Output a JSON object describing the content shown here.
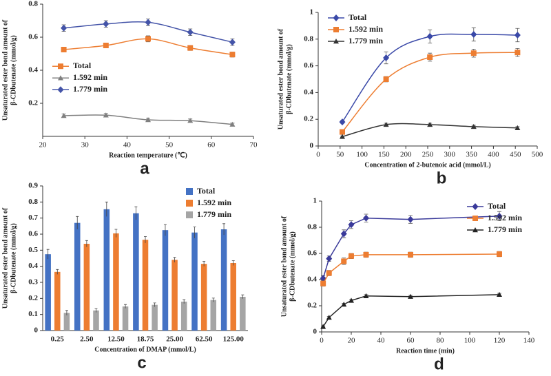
{
  "chart_data": [
    {
      "type": "line",
      "panel": "a",
      "smooth": true,
      "xlabel": "Reaction temperature (℃)",
      "ylabel": [
        "Unsaturated ester bond amount of",
        "β-CDbutenate (mmol/g)"
      ],
      "x": [
        25,
        35,
        45,
        55,
        65
      ],
      "xlim": [
        20,
        70
      ],
      "xticks": [
        20,
        30,
        40,
        50,
        60,
        70
      ],
      "ylim": [
        0,
        0.8
      ],
      "yticks": [
        0.2,
        0.4,
        0.6,
        0.8
      ],
      "legend": "middle-left",
      "series": [
        {
          "name": "Total",
          "color": "#ed7d31",
          "marker": "square",
          "values": [
            0.525,
            0.55,
            0.59,
            0.535,
            0.495
          ],
          "errors": [
            0.015,
            0.015,
            0.018,
            0.015,
            0.015
          ]
        },
        {
          "name": "1.592 min",
          "color": "#7f7f7f",
          "marker": "triangle",
          "values": [
            0.125,
            0.128,
            0.1,
            0.095,
            0.072
          ],
          "errors": [
            0.01,
            0.01,
            0.01,
            0.01,
            0.008
          ]
        },
        {
          "name": "1.779 min",
          "color": "#4454a8",
          "marker": "diamond",
          "values": [
            0.655,
            0.68,
            0.69,
            0.63,
            0.57
          ],
          "errors": [
            0.02,
            0.02,
            0.02,
            0.02,
            0.02
          ]
        }
      ]
    },
    {
      "type": "line",
      "panel": "b",
      "smooth": true,
      "xlabel": "Concentration of 2-butenoic acid (mmol/L)",
      "ylabel": [
        "Unsaturated ester bond amount of",
        "β-CDbutenate (mmol/g)"
      ],
      "x": [
        55,
        155,
        255,
        355,
        455
      ],
      "xlim": [
        0,
        500
      ],
      "xticks": [
        0,
        50,
        100,
        150,
        200,
        250,
        300,
        350,
        400,
        450,
        500
      ],
      "ylim": [
        0,
        1
      ],
      "yticks": [
        0,
        0.2,
        0.4,
        0.6,
        0.8,
        1
      ],
      "legend": "top-left",
      "series": [
        {
          "name": "Total",
          "color": "#3a49a8",
          "marker": "diamond",
          "values": [
            0.18,
            0.66,
            0.82,
            0.835,
            0.83
          ],
          "errors": [
            0.01,
            0.045,
            0.05,
            0.05,
            0.05
          ]
        },
        {
          "name": "1.592 min",
          "color": "#ed7d31",
          "marker": "square",
          "values": [
            0.105,
            0.5,
            0.665,
            0.695,
            0.7
          ],
          "errors": [
            0.01,
            0.02,
            0.03,
            0.03,
            0.03
          ]
        },
        {
          "name": "1.779 min",
          "color": "#333333",
          "marker": "triangle",
          "values": [
            0.07,
            0.16,
            0.16,
            0.145,
            0.135
          ],
          "errors": [
            0.005,
            0.01,
            0.01,
            0.01,
            0.01
          ]
        }
      ]
    },
    {
      "type": "bar",
      "panel": "c",
      "xlabel": "Concentration of DMAP (mmol/L)",
      "ylabel": [
        "Unsaturated ester bond amount of",
        "β-CDbutenate (mmol/g)"
      ],
      "categories": [
        "0.25",
        "2.50",
        "12.50",
        "18.75",
        "25.00",
        "62.50",
        "125.00"
      ],
      "ylim": [
        0,
        0.9
      ],
      "yticks": [
        0,
        0.1,
        0.2,
        0.3,
        0.4,
        0.5,
        0.6,
        0.7,
        0.8,
        0.9
      ],
      "legend": "top-right",
      "series": [
        {
          "name": "Total",
          "color": "#4472c4",
          "values": [
            0.475,
            0.67,
            0.755,
            0.73,
            0.625,
            0.61,
            0.63
          ],
          "errors": [
            0.03,
            0.04,
            0.045,
            0.04,
            0.035,
            0.035,
            0.035
          ]
        },
        {
          "name": "1.592 min",
          "color": "#ed7d31",
          "values": [
            0.365,
            0.54,
            0.605,
            0.565,
            0.44,
            0.415,
            0.42
          ],
          "errors": [
            0.015,
            0.02,
            0.025,
            0.02,
            0.015,
            0.015,
            0.015
          ]
        },
        {
          "name": "1.779 min",
          "color": "#a5a5a5",
          "values": [
            0.11,
            0.125,
            0.15,
            0.16,
            0.18,
            0.19,
            0.21
          ],
          "errors": [
            0.015,
            0.012,
            0.012,
            0.012,
            0.012,
            0.012,
            0.012
          ]
        }
      ]
    },
    {
      "type": "line",
      "panel": "d",
      "smooth": false,
      "xlabel": "Reaction time (min)",
      "ylabel": [
        "Unsaturated ester bond amount of",
        "β-CDbutenate (mmol/g)"
      ],
      "x": [
        1,
        5,
        15,
        20,
        30,
        60,
        120
      ],
      "xlim": [
        0,
        140
      ],
      "xticks": [
        0,
        20,
        40,
        60,
        80,
        100,
        120,
        140
      ],
      "ylim": [
        0,
        1
      ],
      "yticks": [
        0,
        0.2,
        0.4,
        0.6,
        0.8,
        1
      ],
      "legend": "top-right",
      "series": [
        {
          "name": "Total",
          "color": "#3a3a9a",
          "marker": "diamond",
          "values": [
            0.41,
            0.56,
            0.75,
            0.82,
            0.87,
            0.86,
            0.885
          ],
          "errors": [
            0.02,
            0.02,
            0.03,
            0.03,
            0.03,
            0.03,
            0.035
          ]
        },
        {
          "name": "1.592 min",
          "color": "#ed7d31",
          "marker": "square",
          "values": [
            0.37,
            0.45,
            0.54,
            0.58,
            0.59,
            0.59,
            0.595
          ],
          "errors": [
            0.02,
            0.02,
            0.025,
            0.02,
            0.02,
            0.02,
            0.02
          ]
        },
        {
          "name": "1.779 min",
          "color": "#222222",
          "marker": "triangle",
          "values": [
            0.04,
            0.11,
            0.21,
            0.24,
            0.275,
            0.27,
            0.285
          ],
          "errors": [
            0.005,
            0.008,
            0.008,
            0.008,
            0.01,
            0.01,
            0.01
          ]
        }
      ]
    }
  ]
}
